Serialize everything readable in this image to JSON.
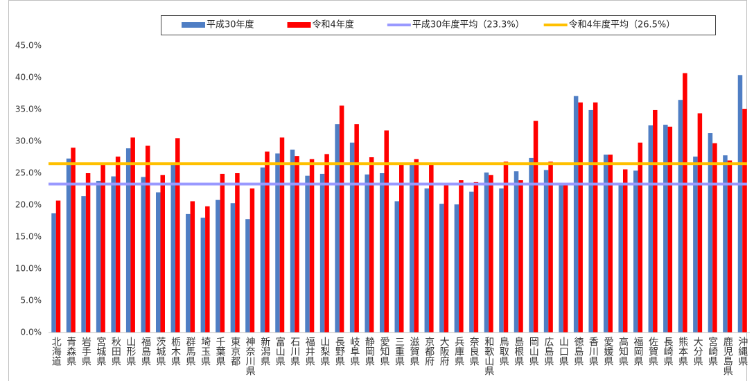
{
  "chart_data": {
    "type": "bar",
    "categories": [
      "北海道",
      "青森県",
      "岩手県",
      "宮城県",
      "秋田県",
      "山形県",
      "福島県",
      "茨城県",
      "栃木県",
      "群馬県",
      "埼玉県",
      "千葉県",
      "東京都",
      "神奈川県",
      "新潟県",
      "富山県",
      "石川県",
      "福井県",
      "山梨県",
      "長野県",
      "岐阜県",
      "静岡県",
      "愛知県",
      "三重県",
      "滋賀県",
      "京都府",
      "大阪府",
      "兵庫県",
      "奈良県",
      "和歌山県",
      "鳥取県",
      "島根県",
      "岡山県",
      "広島県",
      "山口県",
      "徳島県",
      "香川県",
      "愛媛県",
      "高知県",
      "福岡県",
      "佐賀県",
      "長崎県",
      "熊本県",
      "大分県",
      "宮崎県",
      "鹿児島県",
      "沖縄県"
    ],
    "series": [
      {
        "name": "平成30年度",
        "color": "#4f7ec4",
        "values": [
          18.7,
          27.3,
          21.4,
          23.8,
          24.5,
          28.9,
          24.4,
          22.0,
          26.5,
          18.6,
          18.0,
          20.8,
          20.3,
          17.8,
          25.9,
          28.1,
          28.7,
          24.6,
          24.9,
          32.7,
          29.8,
          24.8,
          25.0,
          20.6,
          26.3,
          22.6,
          20.2,
          20.1,
          22.1,
          25.1,
          22.6,
          25.3,
          27.4,
          25.5,
          23.1,
          37.1,
          34.9,
          27.9,
          23.3,
          25.4,
          32.5,
          32.6,
          36.5,
          27.6,
          31.3,
          27.8,
          40.4
        ]
      },
      {
        "name": "令和4年度",
        "color": "#ff0000",
        "values": [
          20.7,
          29.0,
          25.0,
          26.3,
          27.6,
          30.6,
          29.3,
          24.7,
          30.5,
          20.6,
          19.8,
          24.9,
          25.0,
          22.6,
          28.4,
          30.6,
          27.7,
          27.2,
          28.0,
          35.6,
          32.7,
          27.5,
          31.7,
          26.4,
          27.2,
          26.4,
          23.2,
          23.9,
          23.6,
          24.7,
          26.8,
          23.9,
          33.2,
          26.8,
          23.1,
          36.1,
          36.1,
          27.9,
          25.6,
          29.8,
          34.9,
          32.3,
          40.7,
          34.4,
          29.7,
          27.0,
          35.1
        ]
      }
    ],
    "reference_lines": [
      {
        "name": "平成30年度平均（23.3%）",
        "value": 23.3,
        "color": "#9999ff"
      },
      {
        "name": "令和4年度平均（26.5%）",
        "value": 26.5,
        "color": "#ffc000"
      }
    ],
    "ylim": [
      0,
      45
    ],
    "yticks": [
      {
        "value": 0,
        "label": "0.0%"
      },
      {
        "value": 5,
        "label": "5.0%"
      },
      {
        "value": 10,
        "label": "10.0%"
      },
      {
        "value": 15,
        "label": "15.0%"
      },
      {
        "value": 20,
        "label": "20.0%"
      },
      {
        "value": 25,
        "label": "25.0%"
      },
      {
        "value": 30,
        "label": "30.0%"
      },
      {
        "value": 35,
        "label": "35.0%"
      },
      {
        "value": 40,
        "label": "40.0%"
      },
      {
        "value": 45,
        "label": "45.0%"
      }
    ],
    "grid": false
  }
}
